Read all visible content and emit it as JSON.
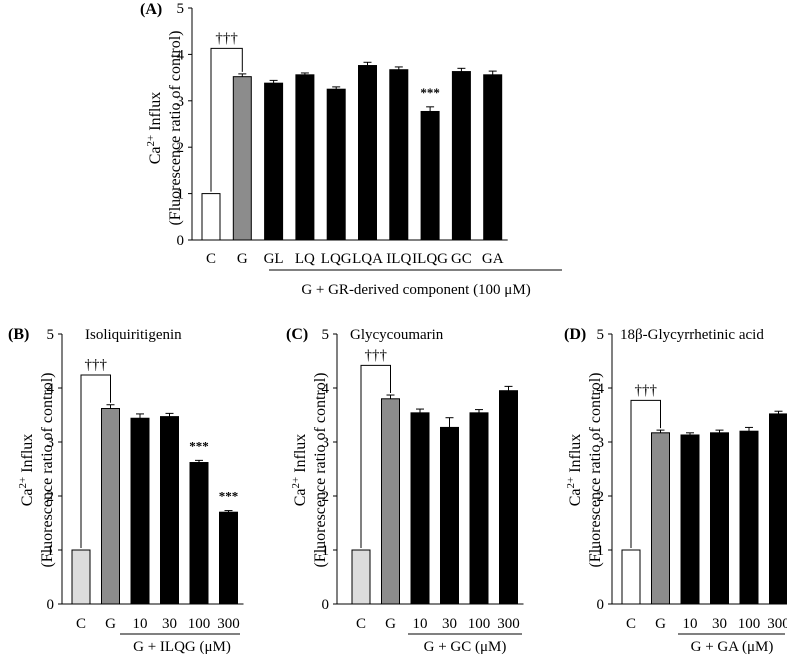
{
  "chart_data": [
    {
      "type": "bar",
      "panel": "(A)",
      "title": "",
      "ylabel_line1": "Ca2+ Influx",
      "ylabel_line2": "(Fluorescence ratio of control)",
      "xgroup_label": "G + GR-derived component (100 μM)",
      "ylim": [
        0,
        5
      ],
      "yticks": [
        "0",
        "1",
        "2",
        "3",
        "4",
        "5"
      ],
      "categories": [
        "C",
        "G",
        "GL",
        "LQ",
        "LQG",
        "LQA",
        "ILQ",
        "ILQG",
        "GC",
        "GA"
      ],
      "values": [
        1.0,
        3.52,
        3.38,
        3.56,
        3.25,
        3.76,
        3.67,
        2.77,
        3.63,
        3.56
      ],
      "errors": [
        0.0,
        0.06,
        0.06,
        0.04,
        0.05,
        0.07,
        0.06,
        0.1,
        0.07,
        0.08
      ],
      "bar_colors": [
        "#ffffff",
        "#8c8c8c",
        "#000000",
        "#000000",
        "#000000",
        "#000000",
        "#000000",
        "#000000",
        "#000000",
        "#000000"
      ],
      "sig": [
        {
          "bar": 7,
          "text": "***"
        }
      ],
      "dagger": "†††"
    },
    {
      "type": "bar",
      "panel": "(B)",
      "title": "Isoliquiritigenin",
      "ylabel_line1": "Ca2+ Influx",
      "ylabel_line2": "(Fluorescence ratio of control)",
      "xgroup_label": "G + ILQG (μM)",
      "ylim": [
        0,
        5
      ],
      "yticks": [
        "0",
        "1",
        "2",
        "3",
        "4",
        "5"
      ],
      "categories": [
        "C",
        "G",
        "10",
        "30",
        "100",
        "300"
      ],
      "values": [
        1.0,
        3.62,
        3.44,
        3.47,
        2.62,
        1.7
      ],
      "errors": [
        0.0,
        0.07,
        0.08,
        0.06,
        0.04,
        0.03
      ],
      "bar_colors": [
        "#dcdcdc",
        "#8c8c8c",
        "#000000",
        "#000000",
        "#000000",
        "#000000"
      ],
      "sig": [
        {
          "bar": 4,
          "text": "***"
        },
        {
          "bar": 5,
          "text": "***"
        }
      ],
      "dagger": "†††"
    },
    {
      "type": "bar",
      "panel": "(C)",
      "title": "Glycycoumarin",
      "ylabel_line1": "Ca2+ Influx",
      "ylabel_line2": "(Fluorescence ratio of control)",
      "xgroup_label": "G + GC (μM)",
      "ylim": [
        0,
        5
      ],
      "yticks": [
        "0",
        "1",
        "2",
        "3",
        "4",
        "5"
      ],
      "categories": [
        "C",
        "G",
        "10",
        "30",
        "100",
        "300"
      ],
      "values": [
        1.0,
        3.8,
        3.54,
        3.27,
        3.54,
        3.95
      ],
      "errors": [
        0.0,
        0.07,
        0.07,
        0.18,
        0.06,
        0.08
      ],
      "bar_colors": [
        "#dcdcdc",
        "#8c8c8c",
        "#000000",
        "#000000",
        "#000000",
        "#000000"
      ],
      "sig": [],
      "dagger": "†††"
    },
    {
      "type": "bar",
      "panel": "(D)",
      "title": "18β-Glycyrrhetinic acid",
      "ylabel_line1": "Ca2+ Influx",
      "ylabel_line2": "(Fluorescence ratio of control)",
      "xgroup_label": "G + GA (μM)",
      "ylim": [
        0,
        5
      ],
      "yticks": [
        "0",
        "1",
        "2",
        "3",
        "4",
        "5"
      ],
      "categories": [
        "C",
        "G",
        "10",
        "30",
        "100",
        "300"
      ],
      "values": [
        1.0,
        3.17,
        3.13,
        3.17,
        3.2,
        3.52
      ],
      "errors": [
        0.0,
        0.05,
        0.04,
        0.05,
        0.07,
        0.05
      ],
      "bar_colors": [
        "#ffffff",
        "#8c8c8c",
        "#000000",
        "#000000",
        "#000000",
        "#000000"
      ],
      "sig": [],
      "dagger": "†††"
    }
  ]
}
